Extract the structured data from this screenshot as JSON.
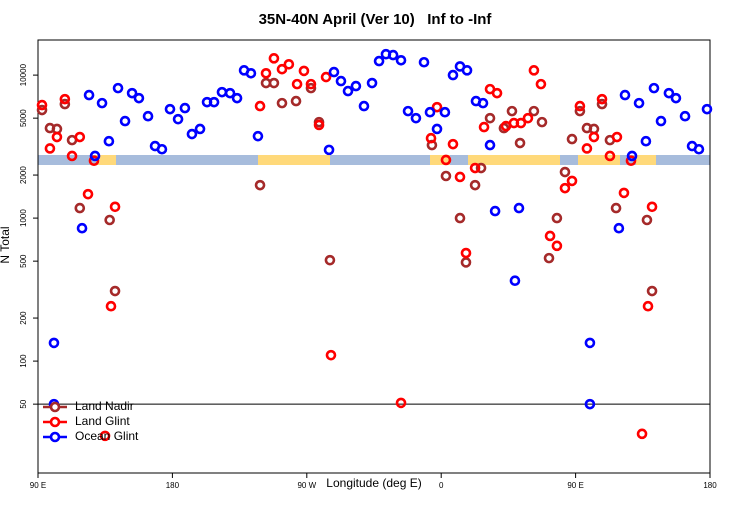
{
  "chart_data": {
    "type": "scatter",
    "title": "35N-40N April (Ver 10)   Inf to -Inf",
    "x_label": "Longitude (deg E)",
    "y_label": "N Total",
    "ylog": true,
    "legend": "lower left",
    "hline": 50,
    "xlim": [
      90,
      540
    ],
    "ylim": [
      16.5,
      17600
    ],
    "xticks": [
      {
        "value": 90,
        "label": "90 E"
      },
      180,
      {
        "value": 270,
        "label": "90 W"
      },
      {
        "value": 360,
        "label": "0"
      },
      {
        "value": 450,
        "label": "90 E"
      },
      {
        "value": 540,
        "label": "180"
      }
    ],
    "yticks": [
      50,
      100,
      200,
      500,
      1000,
      2000,
      5000,
      10000
    ],
    "series": [
      {
        "name": "Land Nadir",
        "color": "#a52a2a",
        "x": [
          92.7,
          98,
          102.7,
          108,
          112.8,
          118,
          138,
          141.6,
          238.7,
          242.7,
          248,
          253.4,
          262.8,
          272.8,
          278.2,
          285.5,
          353.8,
          363.2,
          372.6,
          376.6,
          382.7,
          386.7,
          392.7,
          402,
          407.4,
          412.8,
          422.1,
          427.5,
          432.2,
          437.5,
          442.9,
          447.6,
          452.9,
          457.6,
          462.3,
          467.7,
          473,
          477.1,
          497.8,
          501.2
        ],
        "values": [
          5700,
          4260,
          4200,
          6270,
          3510,
          1175,
          970,
          309,
          1700,
          8800,
          8800,
          6370,
          6580,
          8110,
          4690,
          508,
          3240,
          1970,
          1000,
          490,
          1700,
          2240,
          5000,
          4260,
          5600,
          3350,
          5600,
          4690,
          525,
          1000,
          2100,
          3570,
          5600,
          4260,
          4200,
          6270,
          3510,
          1175,
          970,
          309
        ]
      },
      {
        "name": "Land Glint",
        "color": "#ff0000",
        "x": [
          92.7,
          98,
          102.7,
          108,
          112.8,
          118,
          123.5,
          127.5,
          134.9,
          138.9,
          141.6,
          238.7,
          242.7,
          248,
          253.4,
          258,
          263.5,
          268.1,
          272.8,
          278.2,
          282.9,
          286.2,
          333.1,
          353.2,
          357.2,
          363.2,
          367.9,
          372.6,
          376.6,
          382.7,
          388.7,
          392.7,
          397.4,
          403.4,
          408.7,
          413.4,
          418.1,
          422.1,
          426.8,
          432.9,
          437.5,
          442.9,
          447.6,
          452.9,
          457.6,
          462.3,
          467.7,
          473,
          477.7,
          482.4,
          487.1,
          494.5,
          498.5,
          501.2
        ],
        "values": [
          6170,
          3070,
          3690,
          6790,
          2720,
          3690,
          1470,
          2520,
          30,
          242,
          1200,
          6070,
          10300,
          13100,
          11000,
          11900,
          8650,
          10700,
          8650,
          4480,
          9690,
          110,
          51,
          3620,
          5970,
          2550,
          3290,
          1940,
          570,
          2240,
          4330,
          7980,
          7480,
          4400,
          4620,
          4620,
          5000,
          10800,
          8650,
          750,
          640,
          1620,
          1820,
          6070,
          3070,
          3690,
          6790,
          2720,
          3690,
          1500,
          2520,
          31,
          242,
          1200
        ]
      },
      {
        "name": "Ocean Glint",
        "color": "#0000ff",
        "x": [
          100.7,
          100.7,
          119.5,
          124.2,
          128.2,
          132.9,
          137.5,
          143.6,
          148.3,
          153,
          157.6,
          163.7,
          168.4,
          173,
          178.4,
          183.8,
          188.4,
          193.1,
          198.5,
          203.2,
          207.9,
          213.2,
          218.6,
          223.3,
          228,
          232.6,
          237.3,
          284.9,
          288.2,
          292.9,
          297.6,
          302.9,
          308.3,
          313.7,
          318.4,
          323,
          327.8,
          333.1,
          337.8,
          343.1,
          348.5,
          352.5,
          357.2,
          362.5,
          367.9,
          372.6,
          377.3,
          383.3,
          388,
          392.7,
          396.1,
          409.4,
          412.1,
          459.6,
          459.6,
          479,
          483.1,
          487.8,
          492.5,
          497.1,
          502.5,
          507.2,
          512.5,
          517.2,
          523.3,
          528,
          532.6,
          538
        ],
        "values": [
          134,
          50,
          850,
          7250,
          2720,
          6370,
          3450,
          8110,
          4770,
          7480,
          6900,
          5160,
          3190,
          3030,
          5780,
          4920,
          5880,
          3870,
          4200,
          6470,
          6470,
          7600,
          7480,
          6900,
          10800,
          10300,
          3740,
          3000,
          10500,
          9080,
          7730,
          8380,
          6070,
          8800,
          12530,
          14000,
          13800,
          12700,
          5600,
          5000,
          12300,
          5500,
          4200,
          5500,
          10000,
          11500,
          10800,
          6580,
          6370,
          3240,
          1120,
          365,
          1175,
          134,
          50,
          850,
          7250,
          2720,
          6370,
          3450,
          8110,
          4770,
          7480,
          6900,
          5160,
          3190,
          3030,
          5780
        ]
      }
    ]
  }
}
